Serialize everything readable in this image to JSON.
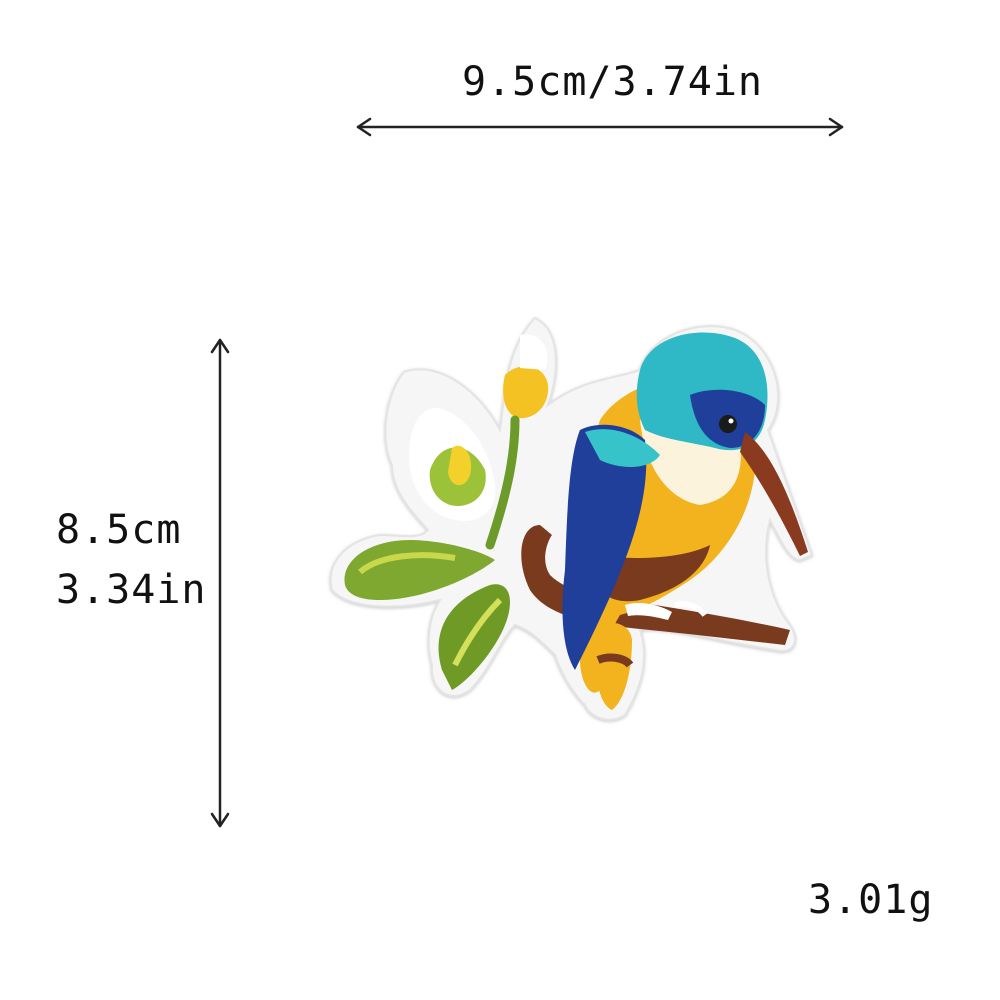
{
  "dimensions": {
    "width_label": "9.5cm/3.74in",
    "height_cm": "8.5cm",
    "height_in": "3.34in"
  },
  "weight": "3.01g",
  "product": {
    "image": "embroidered-kingfisher-patch-icon"
  },
  "colors": {
    "arrow": "#222222",
    "patch_border": "#f4f4f4",
    "head_teal": "#2fb8c6",
    "wing_blue": "#1f3f9a",
    "belly_yellow": "#f2b31e",
    "brown": "#7a3a1e",
    "leaf_green": "#7aa42a"
  }
}
